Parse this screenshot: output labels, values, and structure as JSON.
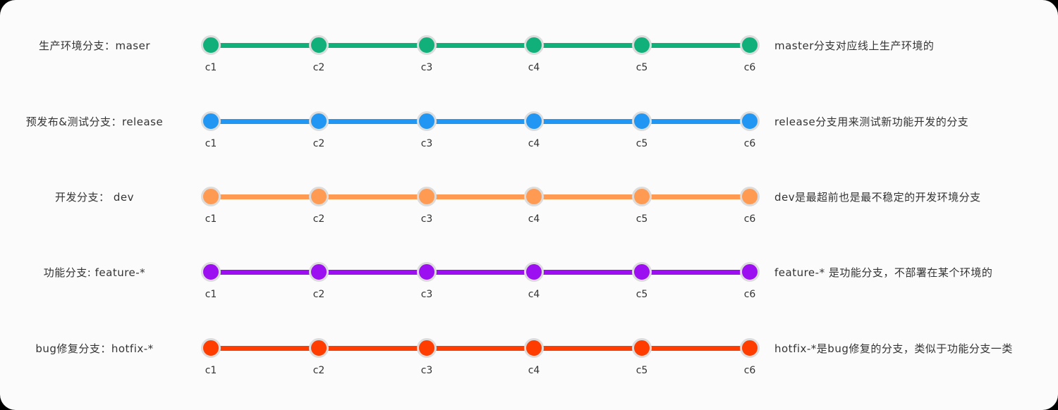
{
  "branches": [
    {
      "left_label": "生产环境分支：maser",
      "right_label": "master分支对应线上生产环境的",
      "color": "#11b07a",
      "commits": [
        "c1",
        "c2",
        "c3",
        "c4",
        "c5",
        "c6"
      ]
    },
    {
      "left_label": "预发布&测试分支：release",
      "right_label": "release分支用来测试新功能开发的分支",
      "color": "#2196f3",
      "commits": [
        "c1",
        "c2",
        "c3",
        "c4",
        "c5",
        "c6"
      ]
    },
    {
      "left_label": "开发分支：  dev",
      "right_label": "dev是最超前也是最不稳定的开发环境分支",
      "color": "#ff9a52",
      "commits": [
        "c1",
        "c2",
        "c3",
        "c4",
        "c5",
        "c6"
      ]
    },
    {
      "left_label": "功能分支: feature-*",
      "right_label": "feature-* 是功能分支，不部署在某个环境的",
      "color": "#9c0ff0",
      "commits": [
        "c1",
        "c2",
        "c3",
        "c4",
        "c5",
        "c6"
      ]
    },
    {
      "left_label": "bug修复分支：hotfix-*",
      "right_label": "hotfix-*是bug修复的分支，类似于功能分支一类",
      "color": "#ff3d00",
      "commits": [
        "c1",
        "c2",
        "c3",
        "c4",
        "c5",
        "c6"
      ]
    }
  ]
}
